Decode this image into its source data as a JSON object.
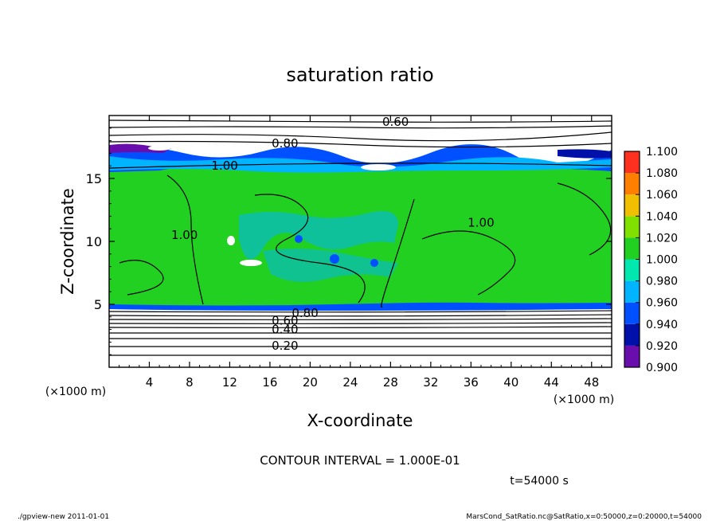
{
  "chart_data": {
    "type": "heatmap",
    "title": "saturation ratio",
    "xlabel": "X-coordinate",
    "ylabel": "Z-coordinate",
    "x_unit_left": "(×1000 m)",
    "x_unit_right": "(×1000 m)",
    "xlim": [
      0,
      50
    ],
    "ylim": [
      0,
      20
    ],
    "x_ticks": [
      "4",
      "8",
      "12",
      "16",
      "20",
      "24",
      "28",
      "32",
      "36",
      "40",
      "44",
      "48"
    ],
    "x_tick_values": [
      4,
      8,
      12,
      16,
      20,
      24,
      28,
      32,
      36,
      40,
      44,
      48
    ],
    "y_ticks": [
      "5",
      "10",
      "15"
    ],
    "y_tick_values": [
      5,
      10,
      15
    ],
    "colorbar": {
      "levels": [
        "0.900",
        "0.920",
        "0.940",
        "0.960",
        "0.980",
        "1.000",
        "1.020",
        "1.040",
        "1.060",
        "1.080",
        "1.100"
      ],
      "colors": [
        "#6a0dad",
        "#0010a8",
        "#0050ff",
        "#00b4ff",
        "#00e8b0",
        "#22d022",
        "#80e000",
        "#f0c000",
        "#ff8000",
        "#ff3020",
        "#ff9898"
      ]
    },
    "contour_labels": [
      {
        "text": "0.60",
        "x": 28.5,
        "z": 19.5
      },
      {
        "text": "0.80",
        "x": 17.5,
        "z": 17.8
      },
      {
        "text": "1.00",
        "x": 11.5,
        "z": 16.0
      },
      {
        "text": "1.00",
        "x": 7.5,
        "z": 10.5
      },
      {
        "text": "1.00",
        "x": 37.0,
        "z": 11.5
      },
      {
        "text": "0.60",
        "x": 17.5,
        "z": 3.7
      },
      {
        "text": "0.40",
        "x": 17.5,
        "z": 3.0
      },
      {
        "text": "0.20",
        "x": 17.5,
        "z": 1.7
      },
      {
        "text": "0.80",
        "x": 19.5,
        "z": 4.3
      }
    ],
    "regions": [
      {
        "range": "z 15.5–17.5",
        "description_value": "0.90–0.96"
      },
      {
        "range": "z 5–15.5",
        "description_value": "1.00"
      },
      {
        "range": "z 0–4.8",
        "description_value": "< 0.90"
      }
    ],
    "grid": false
  },
  "texts": {
    "contour_interval": "CONTOUR INTERVAL = 1.000E-01",
    "time": "t=54000 s",
    "footer_left": "./gpview-new   2011-01-01",
    "footer_right": "MarsCond_SatRatio.nc@SatRatio,x=0:50000,z=0:20000,t=54000"
  }
}
